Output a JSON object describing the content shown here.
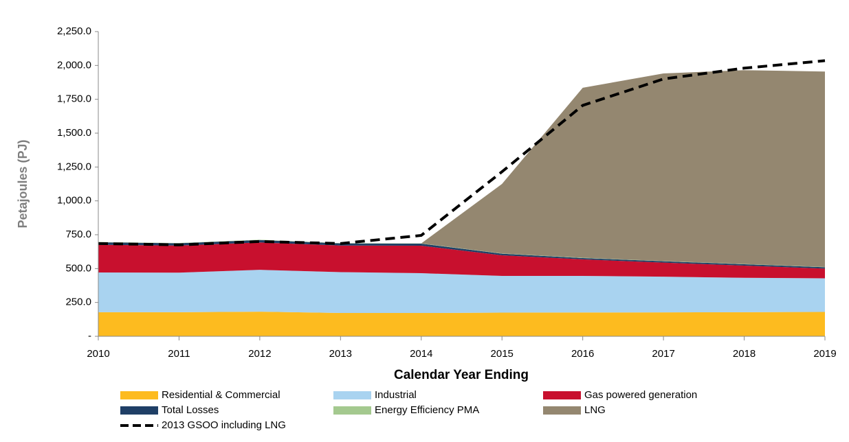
{
  "chart_data": {
    "type": "area",
    "x": [
      2010,
      2011,
      2012,
      2013,
      2014,
      2015,
      2016,
      2017,
      2018,
      2019
    ],
    "xlim": [
      2010,
      2019
    ],
    "xticks": [
      2010,
      2011,
      2012,
      2013,
      2014,
      2015,
      2016,
      2017,
      2018,
      2019
    ],
    "ylim": [
      0,
      2250
    ],
    "yticks": [
      {
        "value": 0,
        "label": "-"
      },
      {
        "value": 250,
        "label": "250.0"
      },
      {
        "value": 500,
        "label": "500.0"
      },
      {
        "value": 750,
        "label": "750.0"
      },
      {
        "value": 1000,
        "label": "1,000.0"
      },
      {
        "value": 1250,
        "label": "1,250.0"
      },
      {
        "value": 1500,
        "label": "1,500.0"
      },
      {
        "value": 1750,
        "label": "1,750.0"
      },
      {
        "value": 2000,
        "label": "2,000.0"
      },
      {
        "value": 2250,
        "label": "2,250.0"
      }
    ],
    "x_label": "Calendar Year Ending",
    "y_label": "Petajoules (PJ)",
    "series": [
      {
        "name": "Residential & Commercial",
        "color": "#fdbb1f",
        "values": [
          178,
          178,
          182,
          172,
          172,
          175,
          176,
          177,
          178,
          180
        ]
      },
      {
        "name": "Industrial",
        "color": "#a9d3f0",
        "values": [
          293,
          292,
          309,
          302,
          294,
          271,
          270,
          263,
          254,
          248
        ]
      },
      {
        "name": "Gas powered generation",
        "color": "#c8102e",
        "values": [
          205,
          200,
          202,
          196,
          203,
          152,
          122,
          104,
          90,
          72
        ]
      },
      {
        "name": "Total Losses",
        "color": "#1f3f66",
        "values": [
          18,
          17,
          18,
          16,
          15,
          12,
          10,
          10,
          10,
          10
        ]
      },
      {
        "name": "Energy Efficiency PMA",
        "color": "#a4c98f",
        "values": [
          2,
          2,
          2,
          2,
          2,
          2,
          2,
          2,
          2,
          2
        ]
      },
      {
        "name": "LNG",
        "color": "#948770",
        "values": [
          0,
          0,
          0,
          0,
          0,
          513,
          1255,
          1385,
          1431,
          1443
        ]
      },
      {
        "name": "2013 GSOO including LNG",
        "color": "#000000",
        "type": "line",
        "dashed": true,
        "values": [
          685,
          675,
          700,
          685,
          745,
          1215,
          1705,
          1900,
          1980,
          2035
        ]
      }
    ]
  }
}
